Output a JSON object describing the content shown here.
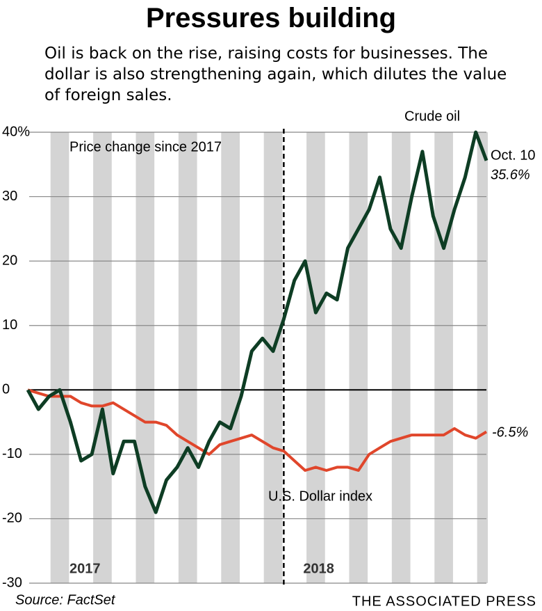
{
  "chart_data": {
    "type": "line",
    "title": "Pressures building",
    "subtitle": "Oil is back on the rise, raising costs for businesses. The dollar is also strengthening again, which dilutes the value of foreign sales.",
    "annotations": [
      "Price change since 2017",
      "Crude oil",
      "Oct. 10",
      "35.6%",
      "-6.5%",
      "U.S. Dollar index"
    ],
    "source": "Source: FactSet",
    "credit": "THE ASSOCIATED PRESS",
    "categories": [
      "2017",
      null,
      null,
      null,
      null,
      null,
      null,
      null,
      null,
      null,
      null,
      null,
      null,
      null,
      null,
      null,
      null,
      null,
      null,
      null,
      null,
      null,
      null,
      null,
      "2018",
      null,
      null,
      null,
      null,
      null,
      null,
      null,
      null,
      null,
      null,
      null,
      null,
      null,
      null,
      null,
      null,
      null,
      null,
      null
    ],
    "series": [
      {
        "name": "Crude oil",
        "color": "#0e3d24",
        "values": [
          0,
          -3,
          -1,
          0,
          -5,
          -11,
          -10,
          -3,
          -13,
          -8,
          -8,
          -15,
          -19,
          -14,
          -12,
          -9,
          -12,
          -8,
          -5,
          -6,
          -1,
          6,
          8,
          6,
          11,
          17,
          20,
          12,
          15,
          14,
          22,
          25,
          28,
          33,
          25,
          22,
          30,
          37,
          27,
          22,
          28,
          33,
          40,
          35.6
        ]
      },
      {
        "name": "U.S. Dollar index",
        "color": "#e0462b",
        "values": [
          0,
          -0.5,
          -1,
          -1,
          -1,
          -2,
          -2.5,
          -2.5,
          -2,
          -3,
          -4,
          -5,
          -5,
          -5.5,
          -7,
          -8,
          -9,
          -10,
          -8.5,
          -8,
          -7.5,
          -7,
          -8,
          -9,
          -9.5,
          -11,
          -12.5,
          -12,
          -12.5,
          -12,
          -12,
          -12.5,
          -10,
          -9,
          -8,
          -7.5,
          -7,
          -7,
          -7,
          -7,
          -6,
          -7,
          -7.5,
          -6.5
        ]
      }
    ],
    "ylim": [
      -30,
      40
    ],
    "yticks": [
      {
        "value": 40,
        "label": "40%"
      },
      30,
      20,
      10,
      0,
      -10,
      -20,
      -30
    ],
    "grid": true
  }
}
